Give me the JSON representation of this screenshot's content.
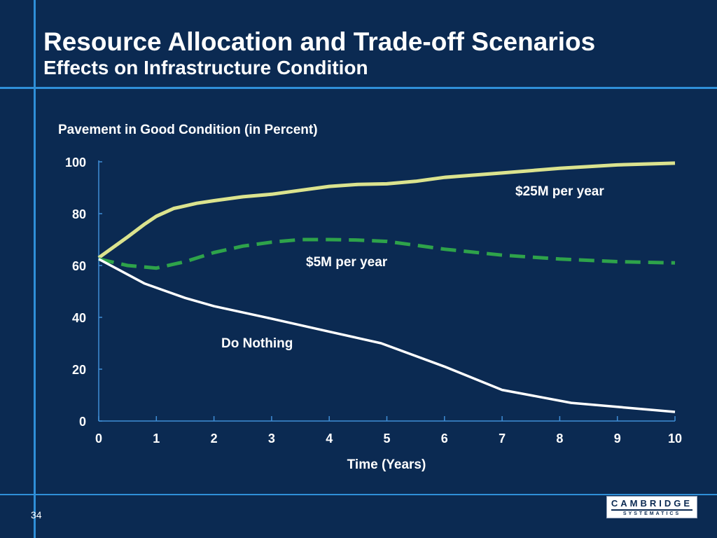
{
  "slide": {
    "title": "Resource Allocation and Trade-off Scenarios",
    "subtitle": "Effects on Infrastructure Condition",
    "number": "34"
  },
  "logo": {
    "top_text": "CAMBRIDGE",
    "bottom_text": "SYSTEMATICS"
  },
  "colors": {
    "background": "#0b2a52",
    "accent_rule": "#2f8fd8",
    "axis": "#3f8ed6",
    "series_25m": "#dbe38e",
    "series_5m": "#2ea34a",
    "series_nothing": "#ffffff"
  },
  "chart_data": {
    "type": "line",
    "title": "Pavement in Good Condition (in Percent)",
    "xlabel": "Time (Years)",
    "ylabel": "",
    "xlim": [
      0,
      10
    ],
    "ylim": [
      0,
      100
    ],
    "xticks": [
      0,
      1,
      2,
      3,
      4,
      5,
      6,
      7,
      8,
      9,
      10
    ],
    "yticks": [
      0,
      20,
      40,
      60,
      80,
      100
    ],
    "grid": false,
    "legend": "inline labels",
    "series": [
      {
        "name": "$25M per year",
        "style": "solid",
        "x": [
          0,
          0.5,
          0.8,
          1,
          1.3,
          1.7,
          2,
          2.5,
          3,
          3.5,
          4,
          4.5,
          5,
          5.5,
          6,
          7,
          8,
          9,
          10
        ],
        "y": [
          63,
          71,
          76,
          79,
          82,
          84,
          85,
          86.5,
          87.5,
          89,
          90.5,
          91.3,
          91.5,
          92.5,
          94,
          95.7,
          97.5,
          98.8,
          99.5
        ]
      },
      {
        "name": "$5M per year",
        "style": "dashed",
        "x": [
          0,
          0.5,
          1,
          1.5,
          2,
          2.5,
          3,
          3.5,
          4,
          4.5,
          5,
          5.5,
          6,
          7,
          8,
          9,
          10
        ],
        "y": [
          62.5,
          60,
          59,
          61.5,
          65,
          67.5,
          69,
          70,
          70,
          69.8,
          69.3,
          67.8,
          66.3,
          64,
          62.5,
          61.5,
          61
        ]
      },
      {
        "name": "Do Nothing",
        "style": "solid",
        "x": [
          0,
          0.8,
          1.5,
          2,
          3,
          4,
          4.9,
          6,
          7,
          8.2,
          10
        ],
        "y": [
          62.5,
          53,
          47.5,
          44.3,
          39.5,
          34.5,
          30,
          21,
          12,
          7,
          3.5
        ]
      }
    ]
  }
}
